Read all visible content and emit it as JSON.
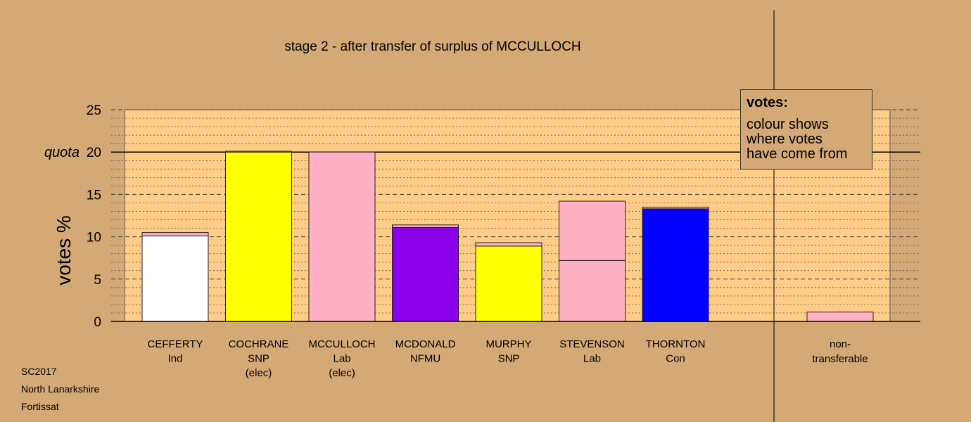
{
  "chart_data": {
    "type": "bar",
    "title": "stage 2 - after transfer of surplus of MCCULLOCH",
    "ylabel": "votes %",
    "ylim": [
      0,
      25
    ],
    "yticks": [
      0,
      5,
      10,
      15,
      20,
      25
    ],
    "quota": {
      "label": "quota",
      "value": 20
    },
    "categories": [
      {
        "name": "CEFFERTY",
        "party": "Ind",
        "status": ""
      },
      {
        "name": "COCHRANE",
        "party": "SNP",
        "status": "(elec)"
      },
      {
        "name": "MCCULLOCH",
        "party": "Lab",
        "status": "(elec)"
      },
      {
        "name": "MCDONALD",
        "party": "NFMU",
        "status": ""
      },
      {
        "name": "MURPHY",
        "party": "SNP",
        "status": ""
      },
      {
        "name": "STEVENSON",
        "party": "Lab",
        "status": ""
      },
      {
        "name": "THORNTON",
        "party": "Con",
        "status": ""
      }
    ],
    "bars": [
      {
        "segments": [
          {
            "value": 10.1,
            "color": "#ffffff"
          },
          {
            "value": 0.4,
            "color": "#ffb0c4"
          }
        ]
      },
      {
        "segments": [
          {
            "value": 20.0,
            "color": "#ffff00"
          },
          {
            "value": 0.1,
            "color": "#ffb0c4"
          }
        ]
      },
      {
        "segments": [
          {
            "value": 20.0,
            "color": "#ffb0c4"
          }
        ]
      },
      {
        "segments": [
          {
            "value": 11.1,
            "color": "#8b00e8"
          },
          {
            "value": 0.3,
            "color": "#ffb0c4"
          }
        ]
      },
      {
        "segments": [
          {
            "value": 8.9,
            "color": "#ffff00"
          },
          {
            "value": 0.4,
            "color": "#ffb0c4"
          }
        ]
      },
      {
        "segments": [
          {
            "value": 7.2,
            "color": "#ffb0c4"
          },
          {
            "value": 7.0,
            "color": "#ffb0c4"
          }
        ]
      },
      {
        "segments": [
          {
            "value": 13.3,
            "color": "#0000ff"
          },
          {
            "value": 0.2,
            "color": "#ffb0c4"
          }
        ]
      }
    ],
    "nontransferable": {
      "label_line1": "non-",
      "label_line2": "transferable",
      "value": 1.1,
      "color": "#ffb0c4"
    },
    "grid": true,
    "plot_background": "#ffcc88"
  },
  "legend": {
    "title": "votes:",
    "lines": [
      "colour shows",
      "where votes",
      "have come from"
    ]
  },
  "footer": {
    "line1": "SC2017",
    "line2": "North Lanarkshire",
    "line3": "Fortissat"
  }
}
